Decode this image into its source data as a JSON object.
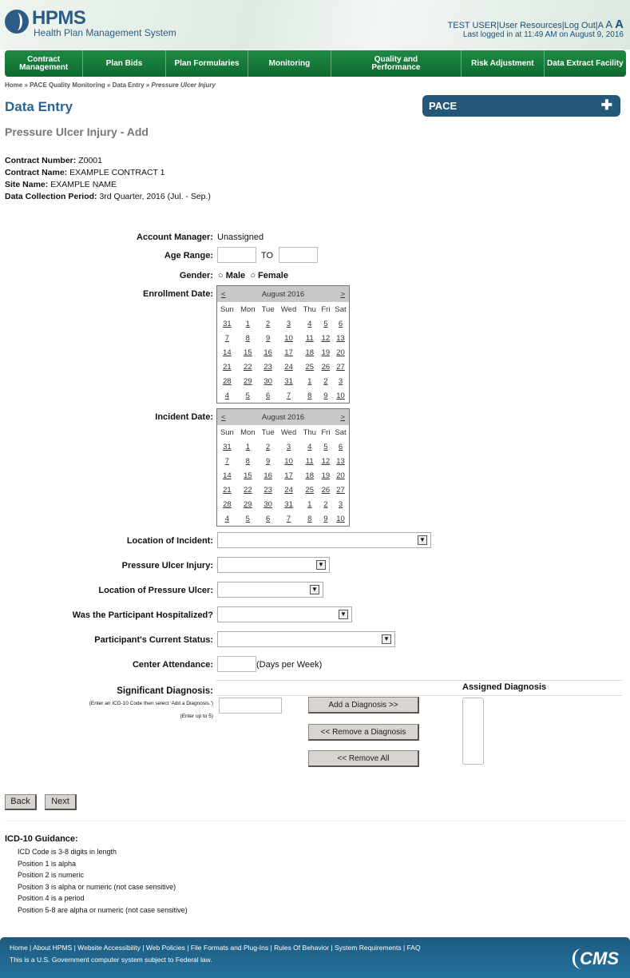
{
  "header": {
    "logo_title": "HPMS",
    "logo_subtitle": "Health Plan Management System",
    "user": "TEST USER",
    "user_resources": "User Resources",
    "logout": "Log Out",
    "font_sizes": [
      "A",
      "A",
      "A"
    ],
    "last_login": "Last logged in at 11:49 AM on August 9, 2016"
  },
  "nav": [
    "Contract Management",
    "Plan Bids",
    "Plan Formularies",
    "Monitoring",
    "Quality and Performance",
    "Risk Adjustment",
    "Data Extract Facility"
  ],
  "breadcrumb": [
    "Home",
    "PACE Quality Monitoring",
    "Data Entry",
    "Pressure Ulcer Injury"
  ],
  "page_title": "Data Entry",
  "pace_panel": {
    "label": "PACE",
    "icon": "plus-icon"
  },
  "subtitle": "Pressure Ulcer Injury - Add",
  "info": [
    {
      "label": "Contract Number:",
      "value": "Z0001"
    },
    {
      "label": "Contract Name:",
      "value": "EXAMPLE CONTRACT 1"
    },
    {
      "label": "Site Name:",
      "value": "EXAMPLE NAME"
    },
    {
      "label": "Data Collection Period:",
      "value": "3rd Quarter, 2016 (Jul. - Sep.)"
    }
  ],
  "form": {
    "account_manager": {
      "label": "Account Manager:",
      "value": "Unassigned"
    },
    "age_range": {
      "label": "Age Range:",
      "from": "",
      "to_label": "TO",
      "to": ""
    },
    "gender": {
      "label": "Gender:",
      "options": [
        "Male",
        "Female"
      ]
    },
    "enrollment_date": {
      "label": "Enrollment Date:"
    },
    "incident_date": {
      "label": "Incident Date:"
    },
    "location_of_incident": {
      "label": "Location of Incident:",
      "value": ""
    },
    "pressure_ulcer_injury": {
      "label": "Pressure Ulcer Injury:",
      "value": ""
    },
    "location_of_pressure_ulcer": {
      "label": "Location of Pressure Ulcer:",
      "value": ""
    },
    "hospitalized": {
      "label": "Was the Participant Hospitalized?",
      "value": ""
    },
    "current_status": {
      "label": "Participant's Current Status:",
      "value": ""
    },
    "center_attendance": {
      "label": "Center Attendance:",
      "value": "",
      "unit": "(Days per Week)"
    },
    "diagnosis": {
      "label": "Significant Diagnosis:",
      "hint1": "(Enter an ICD-10 Code then select 'Add a Diagnosis.')",
      "hint2": "(Enter up to 5)",
      "value": "",
      "add": "Add a Diagnosis >>",
      "remove": "<< Remove a Diagnosis",
      "remove_all": "<< Remove All",
      "assigned_label": "Assigned Diagnosis"
    }
  },
  "calendar": {
    "month": "August 2016",
    "prev": "<",
    "next": ">",
    "days": [
      "Sun",
      "Mon",
      "Tue",
      "Wed",
      "Thu",
      "Fri",
      "Sat"
    ],
    "weeks": [
      [
        "31",
        "1",
        "2",
        "3",
        "4",
        "5",
        "6"
      ],
      [
        "7",
        "8",
        "9",
        "10",
        "11",
        "12",
        "13"
      ],
      [
        "14",
        "15",
        "16",
        "17",
        "18",
        "19",
        "20"
      ],
      [
        "21",
        "22",
        "23",
        "24",
        "25",
        "26",
        "27"
      ],
      [
        "28",
        "29",
        "30",
        "31",
        "1",
        "2",
        "3"
      ],
      [
        "4",
        "5",
        "6",
        "7",
        "8",
        "9",
        "10"
      ]
    ]
  },
  "buttons": {
    "back": "Back",
    "next": "Next"
  },
  "guidance": {
    "title": "ICD-10 Guidance:",
    "items": [
      "ICD Code is 3-8 digits in length",
      "Position 1 is alpha",
      "Position 2 is numeric",
      "Position 3 is alpha or numeric (not case sensitive)",
      "Position 4 is a period",
      "Position 5-8 are alpha or numeric (not case sensitive)"
    ]
  },
  "footer": {
    "links": [
      "Home",
      "About HPMS",
      "Website Accessibility",
      "Web Policies",
      "File Formats and Plug-Ins",
      "Rules Of Behavior",
      "System Requirements",
      "FAQ"
    ],
    "note": "This is a U.S. Government computer system subject to Federal law.",
    "logo": "CMS"
  },
  "colors": {
    "nav_green": "#1a7d3e",
    "title_blue": "#2a6491",
    "pace_blue": "#23587a",
    "footer_blue": "#1e5a80"
  }
}
